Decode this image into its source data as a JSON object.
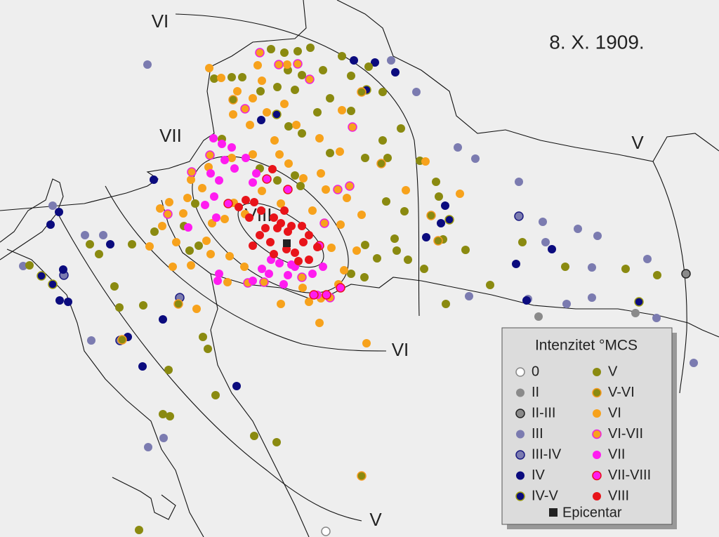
{
  "title": "8. X. 1909.",
  "isoseismal_labels": [
    "VI",
    "VII",
    "VIII",
    "VI",
    "V",
    "V"
  ],
  "legend": {
    "title": "Intenzitet °MCS",
    "items": [
      "0",
      "II",
      "II-III",
      "III",
      "III-IV",
      "IV",
      "IV-V",
      "V",
      "V-VI",
      "VI",
      "VI-VII",
      "VII",
      "VII-VIII",
      "VIII"
    ],
    "epicenter": "Epicentar"
  }
}
